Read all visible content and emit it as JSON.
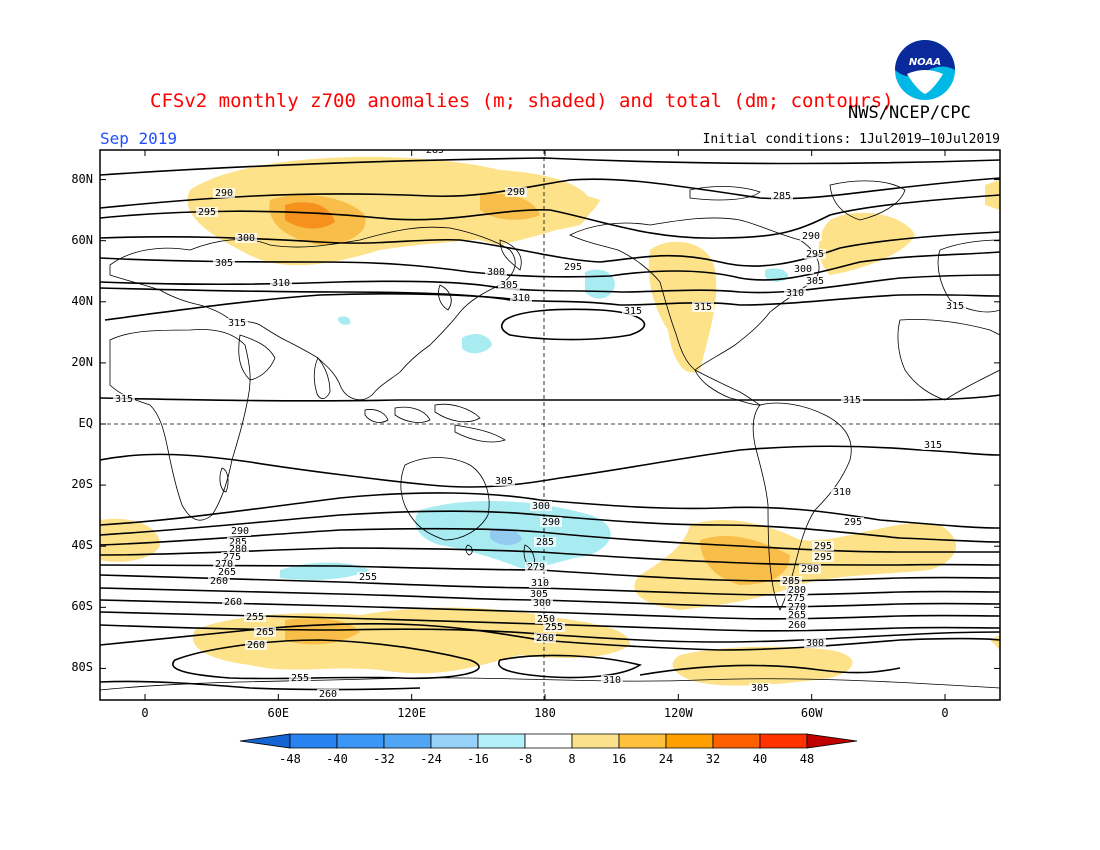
{
  "header": {
    "title": "CFSv2 monthly z700 anomalies (m; shaded) and total (dm; contours)",
    "org": "NWS/NCEP/CPC",
    "month": "Sep 2019",
    "initial_conditions": "Initial conditions: 1Jul2019–10Jul2019"
  },
  "logo": {
    "icon": "noaa-logo-icon",
    "text": "NOAA"
  },
  "map": {
    "projection": "cylindrical-equidistant",
    "center_longitude": "180",
    "lat_labels": [
      "80N",
      "60N",
      "40N",
      "20N",
      "EQ",
      "20S",
      "40S",
      "60S",
      "80S"
    ],
    "lon_labels": [
      "0",
      "60E",
      "120E",
      "180",
      "120W",
      "60W",
      "0"
    ],
    "colors": {
      "contour": "#000000",
      "coastline": "#000000",
      "positive_8_16": "#fde28a",
      "positive_16_24": "#f9be4a",
      "positive_24_32": "#f7911e",
      "negative_8_16": "#a8ecf2",
      "negative_16_24": "#93cbf0"
    },
    "contours": [
      {
        "label": "290",
        "band": "north"
      },
      {
        "label": "295",
        "band": "north"
      },
      {
        "label": "300",
        "band": "north"
      },
      {
        "label": "305",
        "band": "north"
      },
      {
        "label": "310",
        "band": "north"
      },
      {
        "label": "315",
        "band": "north-subtropics"
      },
      {
        "label": "315",
        "band": "south-subtropics"
      },
      {
        "label": "310",
        "band": "south"
      },
      {
        "label": "305",
        "band": "south"
      },
      {
        "label": "300",
        "band": "south"
      },
      {
        "label": "295",
        "band": "south"
      },
      {
        "label": "290",
        "band": "south"
      },
      {
        "label": "285",
        "band": "south"
      },
      {
        "label": "280",
        "band": "south"
      },
      {
        "label": "275",
        "band": "south"
      },
      {
        "label": "270",
        "band": "south"
      },
      {
        "label": "265",
        "band": "south"
      },
      {
        "label": "260",
        "band": "south"
      },
      {
        "label": "255",
        "band": "south"
      },
      {
        "label": "250",
        "band": "antarctic"
      }
    ],
    "contour_labels": [
      "285",
      "290",
      "290",
      "295",
      "300",
      "305",
      "310",
      "315",
      "300",
      "305",
      "310",
      "295",
      "315",
      "285",
      "290",
      "295",
      "300",
      "305",
      "310",
      "315",
      "315",
      "315",
      "315",
      "315",
      "310",
      "305",
      "300",
      "295",
      "290",
      "285",
      "279",
      "310",
      "305",
      "300",
      "295",
      "290",
      "285",
      "280",
      "275",
      "270",
      "265",
      "260",
      "255",
      "260",
      "255",
      "265",
      "260",
      "255",
      "260",
      "250",
      "255",
      "260",
      "310",
      "305",
      "300",
      "295",
      "290",
      "285",
      "280",
      "275",
      "270",
      "265",
      "260"
    ]
  },
  "colorbar": {
    "levels": [
      "-48",
      "-40",
      "-32",
      "-24",
      "-16",
      "-8",
      "8",
      "16",
      "24",
      "32",
      "40",
      "48"
    ],
    "colors": [
      "#1464d2",
      "#2882f0",
      "#3c96f5",
      "#50a5f5",
      "#96d2fa",
      "#b4f0fa",
      "#ffffff",
      "#fae18c",
      "#ffc03c",
      "#ffa000",
      "#ff6000",
      "#ff3200",
      "#c00000"
    ]
  }
}
